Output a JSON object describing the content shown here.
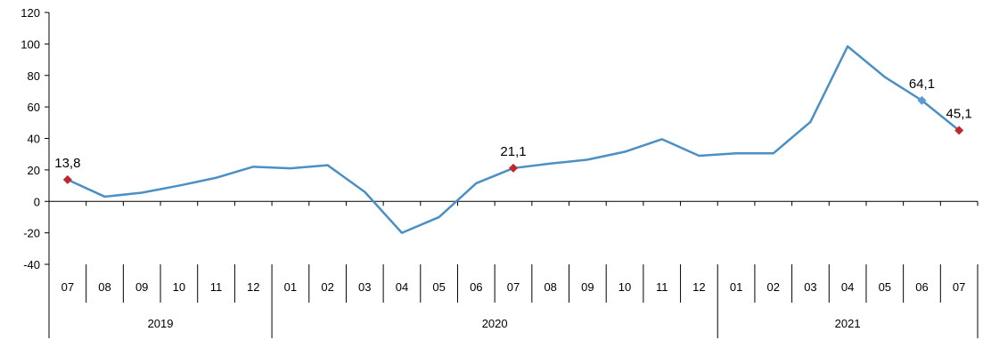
{
  "chart_data": {
    "type": "line",
    "title": "",
    "xlabel": "",
    "ylabel": "",
    "ylim": [
      -40,
      120
    ],
    "yticks": [
      "120",
      "100",
      "80",
      "60",
      "40",
      "20",
      "0",
      "-20",
      "-40"
    ],
    "grid": false,
    "categories": [
      "07",
      "08",
      "09",
      "10",
      "11",
      "12",
      "01",
      "02",
      "03",
      "04",
      "05",
      "06",
      "07",
      "08",
      "09",
      "10",
      "11",
      "12",
      "01",
      "02",
      "03",
      "04",
      "05",
      "06",
      "07"
    ],
    "years": [
      {
        "label": "2019",
        "start": 0,
        "end": 5
      },
      {
        "label": "2020",
        "start": 6,
        "end": 17
      },
      {
        "label": "2021",
        "start": 18,
        "end": 24
      }
    ],
    "series": [
      {
        "color": "#4a90c4",
        "values": [
          13.8,
          3,
          5.5,
          10,
          15,
          22,
          21,
          23,
          6,
          -20,
          -10,
          11.5,
          21.1,
          24,
          26.5,
          31.5,
          39.5,
          29,
          30.5,
          30.5,
          50.5,
          98.5,
          79,
          64.1,
          45.1
        ]
      }
    ],
    "markers": [
      {
        "index": 0,
        "label": "13,8",
        "color": "#c0272d"
      },
      {
        "index": 12,
        "label": "21,1",
        "color": "#c0272d"
      },
      {
        "index": 23,
        "label": "64,1",
        "color": "#5b9bd5"
      },
      {
        "index": 24,
        "label": "45,1",
        "color": "#c0272d"
      }
    ]
  }
}
